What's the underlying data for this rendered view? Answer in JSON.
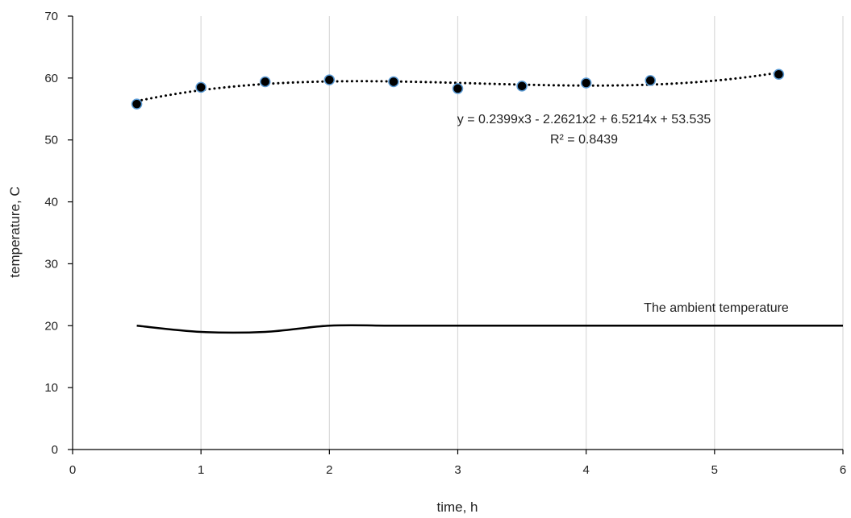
{
  "chart_data": {
    "type": "scatter",
    "xlabel": "time, h",
    "ylabel": "temperature, C",
    "xlim": [
      0,
      6
    ],
    "ylim": [
      0,
      70
    ],
    "x_ticks": [
      0,
      1,
      2,
      3,
      4,
      5,
      6
    ],
    "y_ticks": [
      0,
      10,
      20,
      30,
      40,
      50,
      60,
      70
    ],
    "grid": "vertical",
    "series": [
      {
        "kind": "scatter-markers",
        "x": [
          0.5,
          1.0,
          1.5,
          2.0,
          2.5,
          3.0,
          3.5,
          4.0,
          4.5,
          5.5
        ],
        "y": [
          55.8,
          58.5,
          59.4,
          59.7,
          59.4,
          58.3,
          58.7,
          59.2,
          59.6,
          60.6
        ],
        "marker_color": "#000000",
        "marker_edge_color": "#5b9bd5"
      },
      {
        "kind": "polynomial-trendline",
        "coefficients": [
          53.535,
          6.5214,
          -2.2621,
          0.2399
        ],
        "x_range": [
          0.5,
          5.5
        ],
        "style": "dotted",
        "color": "#000000"
      },
      {
        "kind": "smooth-line",
        "x": [
          0.5,
          1.0,
          1.5,
          2.0,
          2.5,
          3.0,
          3.5,
          4.0,
          4.5,
          5.0,
          5.5,
          6.0
        ],
        "y": [
          20,
          19,
          19,
          20,
          20,
          20,
          20,
          20,
          20,
          20,
          20,
          20
        ],
        "color": "#000000"
      }
    ],
    "annotations": {
      "equation": "y = 0.2399x3 - 2.2621x2 + 6.5214x + 53.535",
      "r_squared": "R² = 0.8439",
      "ambient_label": "The ambient temperature"
    }
  }
}
